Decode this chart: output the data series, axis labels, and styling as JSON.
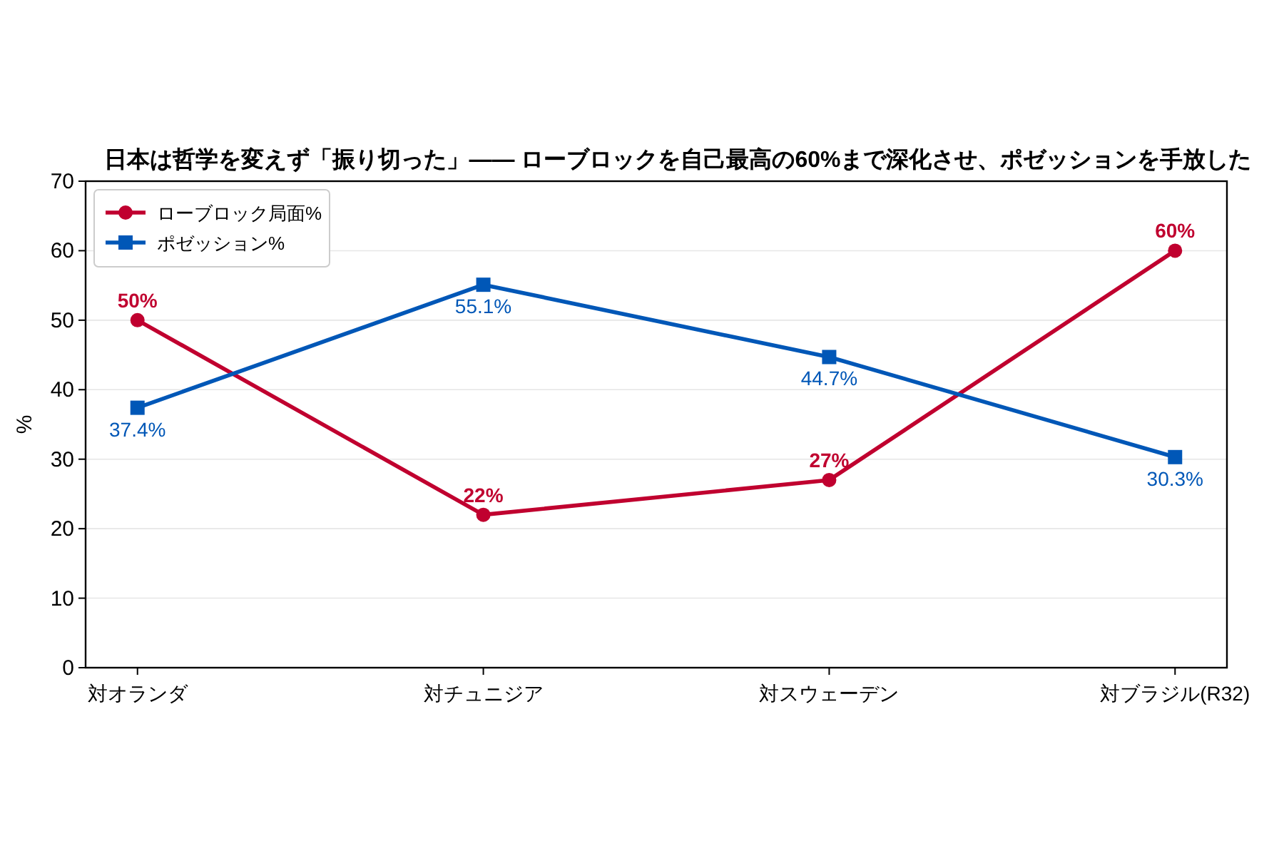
{
  "chart_data": {
    "type": "line",
    "title": "日本は哲学を変えず「振り切った」―― ローブロックを自己最高の60%まで深化させ、ポゼッションを手放した",
    "ylabel": "%",
    "categories": [
      "対オランダ",
      "対チュニジア",
      "対スウェーデン",
      "対ブラジル(R32)"
    ],
    "ylim": [
      0,
      70
    ],
    "yticks": [
      0,
      10,
      20,
      30,
      40,
      50,
      60,
      70
    ],
    "grid": "y",
    "legend": "top left",
    "line_style": "solid",
    "series": [
      {
        "name": "ローブロック局面%",
        "color": "#c0002f",
        "marker": "circle",
        "values": [
          50,
          22,
          27,
          60
        ],
        "value_labels": [
          "50%",
          "22%",
          "27%",
          "60%"
        ]
      },
      {
        "name": "ポゼッション%",
        "color": "#0057b7",
        "marker": "square",
        "values": [
          37.4,
          55.1,
          44.7,
          30.3
        ],
        "value_labels": [
          "37.4%",
          "55.1%",
          "44.7%",
          "30.3%"
        ]
      }
    ]
  }
}
